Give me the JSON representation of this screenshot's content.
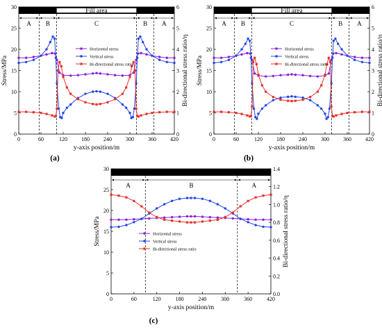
{
  "colors": {
    "horizontal": "#8b1fd9",
    "vertical": "#2346e6",
    "ratio": "#e6322b",
    "bar": "#000000"
  },
  "chart_data": [
    {
      "panel_label": "(a)",
      "type": "line",
      "xlabel": "y-axis position/m",
      "ylabel": "Stress/MPa",
      "y2label": "Bi-directional stress ratio/η",
      "xlim": [
        0,
        420
      ],
      "ylim": [
        0,
        30
      ],
      "y2lim": [
        0,
        6
      ],
      "xticks": [
        "0",
        "60",
        "120",
        "180",
        "240",
        "300",
        "360",
        "420"
      ],
      "yticks": [
        "0",
        "5",
        "10",
        "15",
        "20",
        "25",
        "30"
      ],
      "y2ticks": [
        "0",
        "1",
        "2",
        "3",
        "4",
        "5",
        "6"
      ],
      "fill_label": "Fill area",
      "fill_range": [
        102,
        318
      ],
      "zones": [
        {
          "label": "A",
          "from": 0,
          "to": 55
        },
        {
          "label": "B",
          "from": 55,
          "to": 102
        },
        {
          "label": "C",
          "from": 102,
          "to": 318
        },
        {
          "label": "B",
          "from": 318,
          "to": 365
        },
        {
          "label": "A",
          "from": 365,
          "to": 420
        }
      ],
      "dividers": [
        55,
        102,
        318,
        365
      ],
      "legend": [
        "Horizontal stress",
        "Vertical stress",
        "Bi-directional stress ratio"
      ],
      "series": [
        {
          "name": "Horizontal stress",
          "axis": "left",
          "x": [
            0,
            20,
            40,
            60,
            75,
            90,
            98,
            103,
            110,
            120,
            140,
            160,
            180,
            200,
            210,
            220,
            240,
            260,
            280,
            300,
            310,
            317,
            322,
            330,
            345,
            360,
            380,
            400,
            420
          ],
          "y": [
            18,
            18,
            18.2,
            18.5,
            18.8,
            19.1,
            19,
            17.5,
            14.5,
            13.9,
            13.8,
            13.9,
            14.1,
            14.3,
            14.4,
            14.3,
            14.1,
            13.9,
            13.8,
            13.9,
            14.5,
            17.5,
            19,
            19.1,
            18.8,
            18.5,
            18.2,
            18,
            18
          ]
        },
        {
          "name": "Vertical stress",
          "axis": "left",
          "x": [
            0,
            20,
            40,
            60,
            75,
            85,
            92,
            97,
            100,
            103,
            108,
            112,
            116,
            120,
            130,
            140,
            160,
            180,
            200,
            210,
            220,
            240,
            260,
            280,
            290,
            300,
            304,
            308,
            312,
            317,
            320,
            323,
            328,
            335,
            345,
            360,
            380,
            400,
            420
          ],
          "y": [
            16.8,
            17,
            17.5,
            18.5,
            20,
            21.7,
            23,
            22.5,
            18,
            12,
            6,
            4,
            3.8,
            5,
            6.2,
            7,
            8.5,
            9.5,
            10,
            10.1,
            10,
            9.5,
            8.5,
            7,
            6.2,
            5,
            3.8,
            4,
            6,
            12,
            18,
            22.5,
            23,
            21.7,
            20,
            18.5,
            17.5,
            17,
            16.8
          ]
        },
        {
          "name": "Bi-directional stress ratio",
          "axis": "right",
          "x": [
            0,
            20,
            40,
            60,
            75,
            90,
            97,
            100,
            103,
            106,
            110,
            115,
            120,
            130,
            140,
            160,
            180,
            200,
            210,
            220,
            240,
            260,
            280,
            290,
            300,
            305,
            310,
            314,
            317,
            320,
            323,
            330,
            345,
            360,
            380,
            400,
            420
          ],
          "y": [
            1.05,
            1.05,
            1.03,
            1,
            0.95,
            0.88,
            0.83,
            0.85,
            1.2,
            3,
            3.4,
            3.2,
            2.7,
            2.2,
            1.9,
            1.65,
            1.5,
            1.42,
            1.4,
            1.42,
            1.5,
            1.65,
            1.9,
            2.2,
            2.7,
            3.2,
            3.4,
            3,
            1.2,
            0.85,
            0.83,
            0.88,
            0.95,
            1,
            1.03,
            1.05,
            1.05
          ]
        }
      ]
    },
    {
      "panel_label": "(b)",
      "type": "line",
      "xlabel": "y-axis position/m",
      "ylabel": "Stress/MPa",
      "y2label": "Bi-directional stress ratio/η",
      "xlim": [
        0,
        420
      ],
      "ylim": [
        0,
        30
      ],
      "y2lim": [
        0,
        6
      ],
      "xticks": [
        "0",
        "60",
        "120",
        "180",
        "240",
        "300",
        "360",
        "420"
      ],
      "yticks": [
        "0",
        "5",
        "10",
        "15",
        "20",
        "25",
        "30"
      ],
      "y2ticks": [
        "0",
        "1",
        "2",
        "3",
        "4",
        "5",
        "6"
      ],
      "fill_label": "Fill area",
      "fill_range": [
        102,
        318
      ],
      "zones": [
        {
          "label": "A",
          "from": 0,
          "to": 55
        },
        {
          "label": "B",
          "from": 55,
          "to": 102
        },
        {
          "label": "C",
          "from": 102,
          "to": 318
        },
        {
          "label": "B",
          "from": 318,
          "to": 365
        },
        {
          "label": "A",
          "from": 365,
          "to": 420
        }
      ],
      "dividers": [
        55,
        102,
        318,
        365
      ],
      "legend": [
        "Horizontal stress",
        "Vertical stress",
        "Bi-directional stress ratio"
      ],
      "series": [
        {
          "name": "Horizontal stress",
          "axis": "left",
          "x": [
            0,
            20,
            40,
            60,
            75,
            90,
            98,
            103,
            110,
            120,
            140,
            160,
            180,
            200,
            210,
            220,
            240,
            260,
            280,
            300,
            310,
            317,
            322,
            330,
            345,
            360,
            380,
            400,
            420
          ],
          "y": [
            18,
            18,
            18.2,
            18.5,
            18.8,
            19.1,
            19,
            17.5,
            14.3,
            13.8,
            13.6,
            13.7,
            13.9,
            14,
            14.1,
            14,
            13.9,
            13.7,
            13.6,
            13.8,
            14.3,
            17.5,
            19,
            19.1,
            18.8,
            18.5,
            18.2,
            18,
            18
          ]
        },
        {
          "name": "Vertical stress",
          "axis": "left",
          "x": [
            0,
            20,
            40,
            60,
            75,
            85,
            92,
            97,
            100,
            103,
            108,
            112,
            116,
            120,
            130,
            140,
            160,
            180,
            200,
            210,
            220,
            240,
            260,
            280,
            290,
            300,
            304,
            308,
            312,
            317,
            320,
            323,
            328,
            335,
            345,
            360,
            380,
            400,
            420
          ],
          "y": [
            16.8,
            17,
            17.5,
            18.5,
            20,
            21.3,
            22.5,
            22,
            18,
            12,
            6,
            4,
            3.6,
            4.8,
            6,
            6.8,
            8,
            8.6,
            8.8,
            8.9,
            8.8,
            8.6,
            8,
            6.8,
            6,
            4.8,
            3.6,
            4,
            6,
            12,
            18,
            22,
            22.5,
            21.3,
            20,
            18.5,
            17.5,
            17,
            16.8
          ]
        },
        {
          "name": "Bi-directional stress ratio",
          "axis": "right",
          "x": [
            0,
            20,
            40,
            60,
            75,
            90,
            97,
            100,
            103,
            106,
            110,
            115,
            120,
            130,
            140,
            160,
            180,
            200,
            210,
            220,
            240,
            260,
            280,
            290,
            300,
            305,
            310,
            314,
            317,
            320,
            323,
            330,
            345,
            360,
            380,
            400,
            420
          ],
          "y": [
            1.05,
            1.05,
            1.03,
            1,
            0.95,
            0.88,
            0.83,
            0.85,
            1.3,
            3.4,
            3.6,
            3.3,
            2.8,
            2.3,
            2,
            1.75,
            1.62,
            1.57,
            1.56,
            1.57,
            1.62,
            1.75,
            2,
            2.3,
            2.8,
            3.3,
            3.6,
            3.4,
            1.3,
            0.85,
            0.83,
            0.88,
            0.95,
            1,
            1.03,
            1.05,
            1.05
          ]
        }
      ]
    },
    {
      "panel_label": "(c)",
      "type": "line",
      "xlabel": "y-axis position/m",
      "ylabel": "Stress/MPa",
      "y2label": "Bi-directional stress ratio/η",
      "xlim": [
        0,
        420
      ],
      "ylim": [
        0,
        30
      ],
      "y2lim": [
        0,
        1.4
      ],
      "xticks": [
        "0",
        "60",
        "120",
        "180",
        "240",
        "300",
        "360",
        "420"
      ],
      "yticks": [
        "0",
        "5",
        "10",
        "15",
        "20",
        "25",
        "30"
      ],
      "y2ticks": [
        "0.0",
        "0.2",
        "0.4",
        "0.6",
        "0.8",
        "1.0",
        "1.2",
        "1.4"
      ],
      "zones": [
        {
          "label": "A",
          "from": 0,
          "to": 90
        },
        {
          "label": "B",
          "from": 90,
          "to": 332
        },
        {
          "label": "A",
          "from": 332,
          "to": 420
        }
      ],
      "dividers": [
        90,
        332
      ],
      "legend": [
        "Horizontal stress",
        "Vertical stress",
        "Bi-directional stress ratio"
      ],
      "series": [
        {
          "name": "Horizontal stress",
          "axis": "left",
          "x": [
            0,
            20,
            40,
            60,
            80,
            100,
            120,
            140,
            160,
            180,
            200,
            210,
            220,
            240,
            260,
            280,
            300,
            320,
            340,
            360,
            380,
            400,
            420
          ],
          "y": [
            17.8,
            17.8,
            17.8,
            17.9,
            18,
            18.1,
            18.2,
            18.3,
            18.4,
            18.5,
            18.6,
            18.6,
            18.6,
            18.5,
            18.4,
            18.3,
            18.2,
            18.1,
            18,
            17.9,
            17.8,
            17.8,
            17.8
          ]
        },
        {
          "name": "Vertical stress",
          "axis": "left",
          "x": [
            0,
            20,
            40,
            60,
            80,
            100,
            120,
            140,
            160,
            180,
            200,
            210,
            220,
            240,
            260,
            280,
            300,
            320,
            340,
            360,
            380,
            400,
            420
          ],
          "y": [
            16,
            16.1,
            16.5,
            17.2,
            18,
            19.3,
            20.5,
            21.5,
            22.3,
            22.8,
            23,
            23,
            23,
            22.8,
            22.3,
            21.5,
            20.5,
            19.3,
            18,
            17.2,
            16.5,
            16.1,
            16
          ]
        },
        {
          "name": "Bi-directional stress ratio",
          "axis": "right",
          "x": [
            0,
            20,
            40,
            60,
            80,
            100,
            120,
            140,
            160,
            180,
            200,
            210,
            220,
            240,
            260,
            280,
            300,
            320,
            340,
            360,
            380,
            400,
            420
          ],
          "y": [
            1.11,
            1.1,
            1.08,
            1.04,
            0.98,
            0.91,
            0.86,
            0.83,
            0.82,
            0.81,
            0.8,
            0.8,
            0.8,
            0.81,
            0.82,
            0.83,
            0.86,
            0.91,
            0.98,
            1.04,
            1.08,
            1.1,
            1.11
          ]
        }
      ]
    }
  ]
}
